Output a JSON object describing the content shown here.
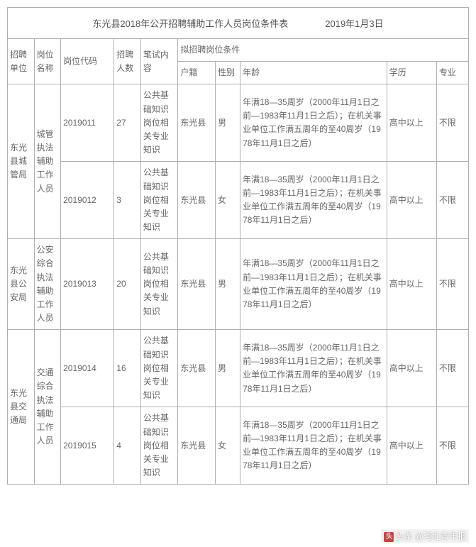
{
  "title": "东光县2018年公开招聘辅助工作人员岗位条件表　　　　2019年1月3日",
  "headers": {
    "unit": "招聘单位",
    "position": "岗位名称",
    "code": "岗位代码",
    "count": "招聘人数",
    "exam": "笔试内容",
    "conditions": "拟招聘岗位条件",
    "huji": "户籍",
    "sex": "性别",
    "age": "年龄",
    "edu": "学历",
    "major": "专业"
  },
  "age_text": "年满18—35周岁（2000年11月1日之前—1983年11月1日之后）；在机关事业单位工作满五周年的至40周岁（1978年11月1日之后）",
  "exam_text": "公共基础知识岗位相关专业知识",
  "huji_val": "东光县",
  "edu_val": "高中以上",
  "major_val": "不限",
  "units": {
    "u1": "东光县城管局",
    "u2": "东光县公安局",
    "u3": "东光县交通局"
  },
  "positions": {
    "p1": "城管执法辅助工作人员",
    "p2": "公安综合执法辅助工作人员",
    "p3": "交通综合执法辅助工作人员"
  },
  "rows": {
    "r1": {
      "code": "2019011",
      "count": "27",
      "sex": "男"
    },
    "r2": {
      "code": "2019012",
      "count": "3",
      "sex": "女"
    },
    "r3": {
      "code": "2019013",
      "count": "20",
      "sex": "男"
    },
    "r4": {
      "code": "2019014",
      "count": "16",
      "sex": "男"
    },
    "r5": {
      "code": "2019015",
      "count": "4",
      "sex": "女"
    }
  },
  "watermark": {
    "prefix": "头条",
    "handle": "@河北青年报"
  },
  "colors": {
    "border": "#b0b0b0",
    "text": "#666666",
    "bg": "#ffffff"
  }
}
